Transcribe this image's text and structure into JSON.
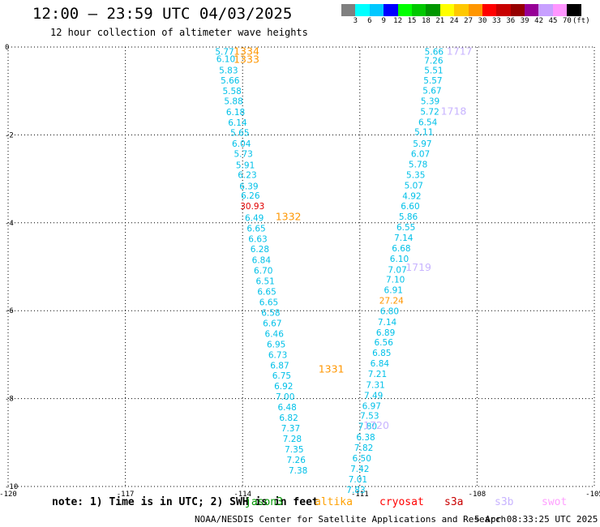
{
  "header": {
    "title": "12:00 – 23:59 UTC 04/03/2025",
    "subtitle": "12 hour collection of altimeter wave heights"
  },
  "colorbar": {
    "colors": [
      "#808080",
      "#00ffff",
      "#00c8ff",
      "#0000ff",
      "#00ff00",
      "#00c800",
      "#009600",
      "#ffff00",
      "#ffc800",
      "#ff9600",
      "#ff0000",
      "#c80000",
      "#960000",
      "#960096",
      "#c8a0ff",
      "#ff96ff",
      "#000000"
    ],
    "labels": [
      "3",
      "6",
      "9",
      "12",
      "15",
      "18",
      "21",
      "24",
      "27",
      "30",
      "33",
      "36",
      "39",
      "42",
      "45",
      "70",
      "(ft)"
    ]
  },
  "note": "note: 1) Time is in UTC; 2) SWH is in feet",
  "satellites": [
    {
      "name": "jason3",
      "color": "#009600"
    },
    {
      "name": "altika",
      "color": "#ffa000"
    },
    {
      "name": "cryosat",
      "color": "#ff0000"
    },
    {
      "name": "s3a",
      "color": "#c80000"
    },
    {
      "name": "s3b",
      "color": "#c8b4ff"
    },
    {
      "name": "swot",
      "color": "#ffa0ff"
    }
  ],
  "credit": "NOAA/NESDIS Center for Satellite Applications and Research",
  "credit_date": "5 Apr 08:33:25 UTC 2025",
  "chart_data": {
    "type": "scatter",
    "title": "12:00 – 23:59 UTC 04/03/2025",
    "xlim": [
      -120,
      -105
    ],
    "ylim": [
      -10,
      0
    ],
    "xticks": [
      "-120",
      "-117",
      "-114",
      "-111",
      "-108",
      "-105"
    ],
    "yticks": [
      "0",
      "-2",
      "-4",
      "-6",
      "-8",
      "-10"
    ],
    "grid": true,
    "series": [
      {
        "name": "altika",
        "values": [
          {
            "x": -114.46,
            "y": -0.1,
            "label": "5.77"
          },
          {
            "x": -114.43,
            "y": -0.27,
            "label": "6.10"
          },
          {
            "x": -114.36,
            "y": -0.53,
            "label": "5.83"
          },
          {
            "x": -114.32,
            "y": -0.76,
            "label": "5.66"
          },
          {
            "x": -114.27,
            "y": -1.0,
            "label": "5.58"
          },
          {
            "x": -114.23,
            "y": -1.23,
            "label": "5.88"
          },
          {
            "x": -114.18,
            "y": -1.48,
            "label": "6.18"
          },
          {
            "x": -114.13,
            "y": -1.72,
            "label": "6.14"
          },
          {
            "x": -114.07,
            "y": -1.95,
            "label": "5.65"
          },
          {
            "x": -114.03,
            "y": -2.2,
            "label": "6.04"
          },
          {
            "x": -113.98,
            "y": -2.43,
            "label": "5.73"
          },
          {
            "x": -113.93,
            "y": -2.68,
            "label": "5.91"
          },
          {
            "x": -113.88,
            "y": -2.91,
            "label": "6.23"
          },
          {
            "x": -113.84,
            "y": -3.16,
            "label": "6.39"
          },
          {
            "x": -113.8,
            "y": -3.38,
            "label": "6.26"
          },
          {
            "x": -113.75,
            "y": -3.62,
            "label": "30.93"
          },
          {
            "x": -113.7,
            "y": -3.88,
            "label": "6.49"
          },
          {
            "x": -113.65,
            "y": -4.12,
            "label": "6.65"
          },
          {
            "x": -113.61,
            "y": -4.36,
            "label": "6.63"
          },
          {
            "x": -113.56,
            "y": -4.59,
            "label": "6.28"
          },
          {
            "x": -113.52,
            "y": -4.84,
            "label": "6.84"
          },
          {
            "x": -113.47,
            "y": -5.08,
            "label": "6.70"
          },
          {
            "x": -113.42,
            "y": -5.32,
            "label": "6.51"
          },
          {
            "x": -113.38,
            "y": -5.56,
            "label": "6.65"
          },
          {
            "x": -113.33,
            "y": -5.8,
            "label": "6.65"
          },
          {
            "x": -113.28,
            "y": -6.04,
            "label": "6.58"
          },
          {
            "x": -113.24,
            "y": -6.28,
            "label": "6.67"
          },
          {
            "x": -113.19,
            "y": -6.52,
            "label": "6.46"
          },
          {
            "x": -113.14,
            "y": -6.76,
            "label": "6.95"
          },
          {
            "x": -113.1,
            "y": -7.0,
            "label": "6.73"
          },
          {
            "x": -113.05,
            "y": -7.24,
            "label": "6.87"
          },
          {
            "x": -113.0,
            "y": -7.47,
            "label": "6.75"
          },
          {
            "x": -112.95,
            "y": -7.71,
            "label": "6.92"
          },
          {
            "x": -112.91,
            "y": -7.95,
            "label": "7.00"
          },
          {
            "x": -112.86,
            "y": -8.19,
            "label": "6.48"
          },
          {
            "x": -112.82,
            "y": -8.43,
            "label": "6.82"
          },
          {
            "x": -112.77,
            "y": -8.67,
            "label": "7.37"
          },
          {
            "x": -112.73,
            "y": -8.91,
            "label": "7.28"
          },
          {
            "x": -112.68,
            "y": -9.15,
            "label": "7.35"
          },
          {
            "x": -112.63,
            "y": -9.39,
            "label": "7.26"
          },
          {
            "x": -112.58,
            "y": -9.63,
            "label": "7.38"
          }
        ]
      },
      {
        "name": "s3b",
        "values": [
          {
            "x": -109.1,
            "y": -0.1,
            "label": "5.66"
          },
          {
            "x": -109.11,
            "y": -0.3,
            "label": "7.26"
          },
          {
            "x": -109.11,
            "y": -0.53,
            "label": "5.51"
          },
          {
            "x": -109.13,
            "y": -0.76,
            "label": "5.57"
          },
          {
            "x": -109.15,
            "y": -0.99,
            "label": "5.67"
          },
          {
            "x": -109.2,
            "y": -1.23,
            "label": "5.39"
          },
          {
            "x": -109.21,
            "y": -1.47,
            "label": "5.72"
          },
          {
            "x": -109.26,
            "y": -1.71,
            "label": "6.54"
          },
          {
            "x": -109.36,
            "y": -1.93,
            "label": "5.11"
          },
          {
            "x": -109.4,
            "y": -2.2,
            "label": "5.97"
          },
          {
            "x": -109.45,
            "y": -2.43,
            "label": "6.07"
          },
          {
            "x": -109.51,
            "y": -2.67,
            "label": "5.78"
          },
          {
            "x": -109.57,
            "y": -2.91,
            "label": "5.35"
          },
          {
            "x": -109.62,
            "y": -3.15,
            "label": "5.07"
          },
          {
            "x": -109.67,
            "y": -3.39,
            "label": "4.92"
          },
          {
            "x": -109.71,
            "y": -3.62,
            "label": "6.60"
          },
          {
            "x": -109.76,
            "y": -3.86,
            "label": "5.86"
          },
          {
            "x": -109.82,
            "y": -4.1,
            "label": "6.55"
          },
          {
            "x": -109.88,
            "y": -4.34,
            "label": "7.14"
          },
          {
            "x": -109.94,
            "y": -4.58,
            "label": "6.68"
          },
          {
            "x": -109.99,
            "y": -4.82,
            "label": "6.10"
          },
          {
            "x": -110.04,
            "y": -5.06,
            "label": "7.07"
          },
          {
            "x": -110.09,
            "y": -5.29,
            "label": "7.10"
          },
          {
            "x": -110.14,
            "y": -5.53,
            "label": "6.91"
          },
          {
            "x": -110.19,
            "y": -5.77,
            "label": "27.24"
          },
          {
            "x": -110.24,
            "y": -6.01,
            "label": "6.80"
          },
          {
            "x": -110.3,
            "y": -6.25,
            "label": "7.14"
          },
          {
            "x": -110.34,
            "y": -6.49,
            "label": "6.89"
          },
          {
            "x": -110.39,
            "y": -6.72,
            "label": "6.56"
          },
          {
            "x": -110.44,
            "y": -6.96,
            "label": "6.85"
          },
          {
            "x": -110.49,
            "y": -7.2,
            "label": "6.84"
          },
          {
            "x": -110.55,
            "y": -7.44,
            "label": "7.21"
          },
          {
            "x": -110.6,
            "y": -7.68,
            "label": "7.31"
          },
          {
            "x": -110.65,
            "y": -7.92,
            "label": "7.49"
          },
          {
            "x": -110.7,
            "y": -8.16,
            "label": "6.97"
          },
          {
            "x": -110.75,
            "y": -8.39,
            "label": "7.53"
          },
          {
            "x": -110.8,
            "y": -8.63,
            "label": "7.80"
          },
          {
            "x": -110.85,
            "y": -8.87,
            "label": "6.38"
          },
          {
            "x": -110.9,
            "y": -9.11,
            "label": "7.82"
          },
          {
            "x": -110.95,
            "y": -9.35,
            "label": "6.50"
          },
          {
            "x": -111.0,
            "y": -9.59,
            "label": "7.42"
          },
          {
            "x": -111.05,
            "y": -9.83,
            "label": "7.01"
          },
          {
            "x": -111.1,
            "y": -10.07,
            "label": "7.83"
          }
        ]
      }
    ],
    "annotations": [
      {
        "x": -113.9,
        "y": -0.08,
        "label": "1334",
        "color": "#ff9600"
      },
      {
        "x": -113.9,
        "y": -0.27,
        "label": "1333",
        "color": "#ff9600"
      },
      {
        "x": -112.83,
        "y": -3.85,
        "label": "1332",
        "color": "#ff9600"
      },
      {
        "x": -111.73,
        "y": -7.32,
        "label": "1331",
        "color": "#ff9600"
      },
      {
        "x": -108.45,
        "y": -0.08,
        "label": "1717",
        "color": "#c8b4ff"
      },
      {
        "x": -108.6,
        "y": -1.45,
        "label": "1718",
        "color": "#c8b4ff"
      },
      {
        "x": -109.5,
        "y": -5.0,
        "label": "1719",
        "color": "#c8b4ff"
      },
      {
        "x": -110.58,
        "y": -8.6,
        "label": "1720",
        "color": "#c8b4ff"
      }
    ]
  }
}
